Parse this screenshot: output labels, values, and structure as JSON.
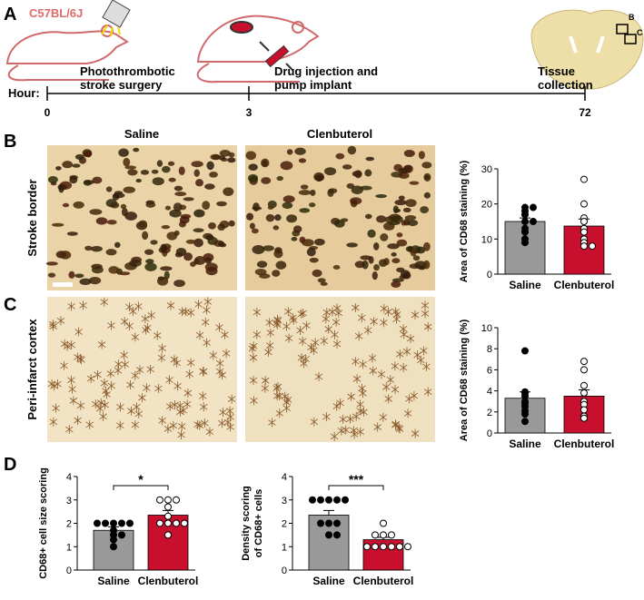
{
  "panel_labels": [
    "A",
    "B",
    "C",
    "D"
  ],
  "strain": "C57BL/6J",
  "brain_boxes": [
    "B",
    "C"
  ],
  "timeline": {
    "hour_label": "Hour:",
    "ticks": [
      "0",
      "3",
      "72"
    ],
    "events": [
      [
        "Photothrombotic",
        "stroke surgery"
      ],
      [
        "Drug injection and",
        "pump implant"
      ],
      [
        "Tissue",
        "collection"
      ]
    ]
  },
  "columns": [
    "Saline",
    "Clenbuterol"
  ],
  "rows": [
    "Stroke border",
    "Peri-infarct cortex"
  ],
  "chart_data": [
    {
      "type": "bar",
      "ylabel_lines": [
        "Area of CD68 staining (%)"
      ],
      "categories": [
        "Saline",
        "Clenbuterol"
      ],
      "values": [
        15,
        13.7
      ],
      "errors": [
        1,
        2
      ],
      "colors": [
        "#999999",
        "#c8102e"
      ],
      "point_fills": [
        "#000000",
        "#ffffff"
      ],
      "points": [
        [
          19,
          19,
          18,
          17,
          15,
          15,
          13,
          12,
          10,
          9
        ],
        [
          27,
          20,
          16,
          15,
          13,
          12,
          10,
          9,
          8,
          8
        ]
      ],
      "ylim": [
        0,
        30
      ],
      "yticks": [
        0,
        10,
        20,
        30
      ]
    },
    {
      "type": "bar",
      "ylabel_lines": [
        "Area of CD68 staining (%)"
      ],
      "categories": [
        "Saline",
        "Clenbuterol"
      ],
      "values": [
        3.3,
        3.5
      ],
      "errors": [
        0.6,
        0.6
      ],
      "colors": [
        "#999999",
        "#c8102e"
      ],
      "point_fills": [
        "#000000",
        "#ffffff"
      ],
      "points": [
        [
          7.8,
          3.9,
          3.8,
          3.5,
          3,
          2.8,
          2.5,
          2.1,
          1.8,
          1.1
        ],
        [
          6.8,
          6,
          4.5,
          3.8,
          3,
          2.7,
          2.2,
          1.6,
          1.4
        ]
      ],
      "ylim": [
        0,
        10
      ],
      "yticks": [
        0,
        2,
        4,
        6,
        8,
        10
      ]
    },
    {
      "type": "bar",
      "ylabel_lines": [
        "CD68+ cell size scoring"
      ],
      "categories": [
        "Saline",
        "Clenbuterol"
      ],
      "values": [
        1.7,
        2.35
      ],
      "errors": [
        0.15,
        0.2
      ],
      "colors": [
        "#999999",
        "#c8102e"
      ],
      "point_fills": [
        "#000000",
        "#ffffff"
      ],
      "points": [
        [
          2,
          2,
          2,
          2,
          2,
          1.7,
          1.5,
          1.5,
          1.3,
          1
        ],
        [
          3,
          3,
          3,
          2.7,
          2.3,
          2,
          2,
          2,
          2,
          1.5
        ]
      ],
      "ylim": [
        0,
        4
      ],
      "yticks": [
        0,
        1,
        2,
        3,
        4
      ],
      "significance": "*"
    },
    {
      "type": "bar",
      "ylabel_lines": [
        "Density scoring",
        "of CD68+ cells"
      ],
      "categories": [
        "Saline",
        "Clenbuterol"
      ],
      "values": [
        2.35,
        1.3
      ],
      "errors": [
        0.2,
        0.1
      ],
      "colors": [
        "#999999",
        "#c8102e"
      ],
      "point_fills": [
        "#000000",
        "#ffffff"
      ],
      "points": [
        [
          3,
          3,
          3,
          3,
          3,
          2,
          2,
          2,
          1.5,
          1.5
        ],
        [
          2,
          1.5,
          1.5,
          1.5,
          1,
          1,
          1,
          1,
          1,
          1
        ]
      ],
      "ylim": [
        0,
        4
      ],
      "yticks": [
        0,
        1,
        2,
        3,
        4
      ],
      "significance": "***"
    }
  ]
}
